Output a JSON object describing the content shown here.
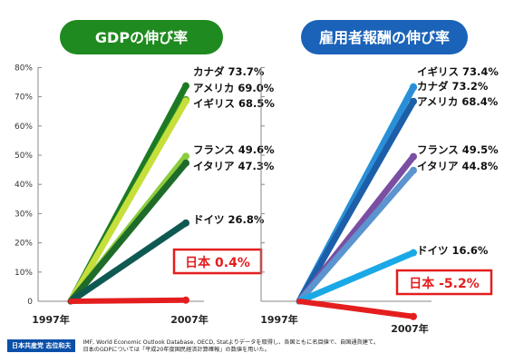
{
  "chart_data": [
    {
      "type": "line",
      "title": "GDPの伸び率",
      "title_color": "#1f8a1f",
      "x": [
        "1997年",
        "2007年"
      ],
      "ylim": [
        0,
        80
      ],
      "yticks": [
        "0",
        "10%",
        "20%",
        "30%",
        "40%",
        "50%",
        "60%",
        "70%",
        "80%"
      ],
      "grid": false,
      "series": [
        {
          "name": "カナダ",
          "label": "カナダ 73.7%",
          "values": [
            0,
            73.7
          ],
          "color": "#1c7a24"
        },
        {
          "name": "アメリカ",
          "label": "アメリカ 69.0%",
          "values": [
            0,
            69.0
          ],
          "color": "#4aa02c"
        },
        {
          "name": "イギリス",
          "label": "イギリス 68.5%",
          "values": [
            0,
            68.5
          ],
          "color": "#c6df3a"
        },
        {
          "name": "フランス",
          "label": "フランス 49.6%",
          "values": [
            0,
            49.6
          ],
          "color": "#8ccc3e"
        },
        {
          "name": "イタリア",
          "label": "イタリア 47.3%",
          "values": [
            0,
            47.3
          ],
          "color": "#1e6b2a"
        },
        {
          "name": "ドイツ",
          "label": "ドイツ 26.8%",
          "values": [
            0,
            26.8
          ],
          "color": "#0e5a52"
        },
        {
          "name": "日本",
          "label": "日本 0.4%",
          "values": [
            0,
            0.4
          ],
          "color": "#e41e1e",
          "highlight": true
        }
      ]
    },
    {
      "type": "line",
      "title": "雇用者報酬の伸び率",
      "title_color": "#1a63b8",
      "x": [
        "1997年",
        "2007年"
      ],
      "ylim": [
        0,
        80
      ],
      "grid": false,
      "series": [
        {
          "name": "イギリス",
          "label": "イギリス 73.4%",
          "values": [
            0,
            73.4
          ],
          "color": "#1fb6ea"
        },
        {
          "name": "カナダ",
          "label": "カナダ 73.2%",
          "values": [
            0,
            73.2
          ],
          "color": "#2a8fd6"
        },
        {
          "name": "アメリカ",
          "label": "アメリカ 68.4%",
          "values": [
            0,
            68.4
          ],
          "color": "#1d5ea8"
        },
        {
          "name": "フランス",
          "label": "フランス 49.5%",
          "values": [
            0,
            49.5
          ],
          "color": "#7a4fa3"
        },
        {
          "name": "イタリア",
          "label": "イタリア 44.8%",
          "values": [
            0,
            44.8
          ],
          "color": "#5b94cf"
        },
        {
          "name": "ドイツ",
          "label": "ドイツ 16.6%",
          "values": [
            0,
            16.6
          ],
          "color": "#1aa9e6"
        },
        {
          "name": "日本",
          "label": "日本 -5.2%",
          "values": [
            0,
            -5.2
          ],
          "color": "#e41e1e",
          "highlight": true
        }
      ]
    }
  ],
  "footer": {
    "party": "日本共産党 志位和夫",
    "source_line1": "IMF, World Economic Outlook Database, OECD, Statよりデータを取得し、各国ともに名目値で、自国通貨建て。",
    "source_line2": "日本のGDPについては「平成20年度国民経済計算確報」の数値を用いた。"
  }
}
